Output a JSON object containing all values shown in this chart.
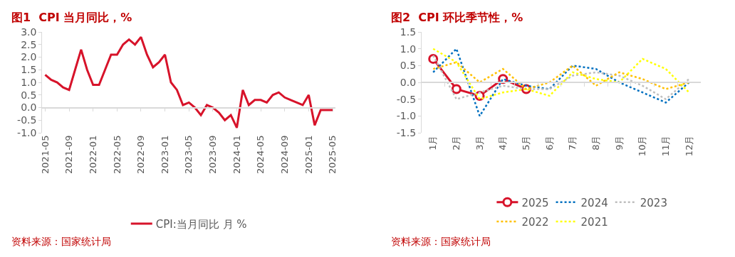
{
  "chart_data": [
    {
      "type": "line",
      "title": "图1  CPI 当月同比，%",
      "categories": [
        "2021-05",
        null,
        null,
        null,
        "2021-09",
        null,
        null,
        null,
        "2022-01",
        null,
        null,
        null,
        "2022-05",
        null,
        null,
        null,
        "2022-09",
        null,
        null,
        null,
        "2023-01",
        null,
        null,
        null,
        "2023-05",
        null,
        null,
        null,
        "2023-09",
        null,
        null,
        null,
        "2024-01",
        null,
        null,
        null,
        "2024-05",
        null,
        null,
        null,
        "2024-09",
        null,
        null,
        null,
        "2025-01",
        null,
        null,
        null,
        "2025-05"
      ],
      "series": [
        {
          "name": "CPI:当月同比 月 %",
          "color": "#d7132a",
          "values": [
            1.3,
            1.1,
            1.0,
            0.8,
            0.7,
            1.5,
            2.3,
            1.5,
            0.9,
            0.9,
            1.5,
            2.1,
            2.1,
            2.5,
            2.7,
            2.5,
            2.8,
            2.1,
            1.6,
            1.8,
            2.1,
            1.0,
            0.7,
            0.1,
            0.2,
            0.0,
            -0.3,
            0.1,
            0.0,
            -0.2,
            -0.5,
            -0.3,
            -0.8,
            0.7,
            0.1,
            0.3,
            0.3,
            0.2,
            0.5,
            0.6,
            0.4,
            0.3,
            0.2,
            0.1,
            0.5,
            -0.7,
            -0.1,
            -0.1,
            -0.1
          ]
        }
      ],
      "ylim": [
        -1,
        3
      ],
      "yticks": [
        {
          "value": -1,
          "label": "-1.0"
        },
        {
          "value": -0.5,
          "label": "-0.5"
        },
        {
          "value": 0,
          "label": "0.0"
        },
        {
          "value": 0.5,
          "label": "0.5"
        },
        {
          "value": 1,
          "label": "1.0"
        },
        {
          "value": 1.5,
          "label": "1.5"
        },
        {
          "value": 2,
          "label": "2.0"
        },
        {
          "value": 2.5,
          "label": "2.5"
        },
        {
          "value": 3,
          "label": "3.0"
        }
      ],
      "legend": "bottom",
      "marker": "none",
      "line_style": "solid",
      "annotations": [
        "资料来源：国家统计局"
      ]
    },
    {
      "type": "line",
      "title": "图2  CPI 环比季节性，%",
      "categories": [
        "1月",
        "2月",
        "3月",
        "4月",
        "5月",
        "6月",
        "7月",
        "8月",
        "9月",
        "10月",
        "11月",
        "12月"
      ],
      "series": [
        {
          "name": "2025",
          "color": "#d7132a",
          "marker": "circle",
          "line_style": "solid",
          "values": [
            0.7,
            -0.2,
            -0.4,
            0.1,
            -0.2,
            null,
            null,
            null,
            null,
            null,
            null,
            null
          ]
        },
        {
          "name": "2024",
          "color": "#0070c0",
          "marker": "none",
          "line_style": "dotted",
          "values": [
            0.3,
            1.0,
            -1.0,
            0.1,
            -0.1,
            -0.2,
            0.5,
            0.4,
            0.0,
            -0.3,
            -0.6,
            0.0
          ]
        },
        {
          "name": "2023",
          "color": "#bfbfbf",
          "marker": "none",
          "line_style": "dotted",
          "values": [
            0.8,
            -0.5,
            -0.3,
            -0.1,
            -0.2,
            -0.2,
            0.2,
            0.3,
            0.2,
            -0.1,
            -0.5,
            0.1
          ]
        },
        {
          "name": "2022",
          "color": "#ffc000",
          "marker": "none",
          "line_style": "dotted",
          "values": [
            0.4,
            0.6,
            0.0,
            0.4,
            -0.2,
            0.0,
            0.5,
            -0.1,
            0.3,
            0.1,
            -0.2,
            0.0
          ]
        },
        {
          "name": "2021",
          "color": "#ffff00",
          "marker": "none",
          "line_style": "dotted",
          "values": [
            1.0,
            0.6,
            -0.5,
            -0.3,
            -0.2,
            -0.4,
            0.3,
            0.1,
            0.0,
            0.7,
            0.4,
            -0.3
          ]
        }
      ],
      "ylim": [
        -1.5,
        1.5
      ],
      "yticks": [
        {
          "value": -1.5,
          "label": "-1.5"
        },
        {
          "value": -1,
          "label": "-1.0"
        },
        {
          "value": -0.5,
          "label": "-0.5"
        },
        {
          "value": 0,
          "label": "0.0"
        },
        {
          "value": 0.5,
          "label": "0.5"
        },
        {
          "value": 1,
          "label": "1.0"
        },
        {
          "value": 1.5,
          "label": "1.5"
        }
      ],
      "legend": "bottom",
      "annotations": [
        "资料来源：国家统计局"
      ]
    }
  ]
}
